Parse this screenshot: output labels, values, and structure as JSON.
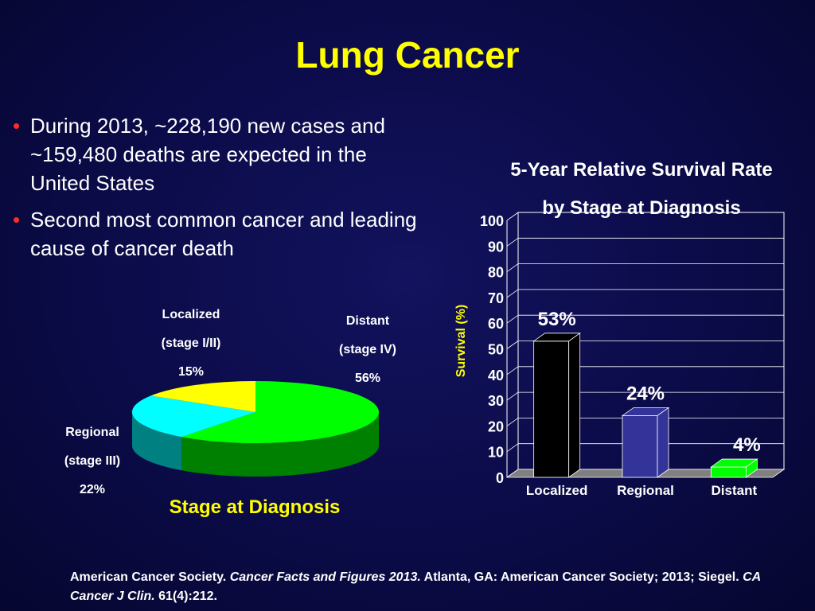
{
  "slide": {
    "title": "Lung Cancer",
    "bullets": [
      "During 2013, ~228,190 new cases and ~159,480 deaths are expected in the United States",
      "Second most common cancer and leading cause of cancer death"
    ],
    "footer": {
      "part1": "American Cancer Society. ",
      "italic1": "Cancer Facts and Figures 2013.",
      "part2": " Atlanta, GA: American Cancer Society; 2013; Siegel. ",
      "italic2": "CA Cancer J Clin.",
      "part3": " 61(4):212."
    },
    "colors": {
      "title": "#ffff00",
      "bullet_marker": "#ff2a2a",
      "background": "#0b0b48"
    }
  },
  "chart_data": [
    {
      "type": "pie",
      "title": "Stage at Diagnosis",
      "slices": [
        {
          "label_line1": "Localized",
          "label_line2": "(stage I/II)",
          "value_label": "15%",
          "value": 15,
          "color": "#ffff00",
          "side_color": "#b3b300"
        },
        {
          "label_line1": "Regional",
          "label_line2": "(stage III)",
          "value_label": "22%",
          "value": 22,
          "color": "#00ffff",
          "side_color": "#008080"
        },
        {
          "label_line1": "Distant",
          "label_line2": "(stage IV)",
          "value_label": "56%",
          "value": 56,
          "color": "#00ff00",
          "side_color": "#008000"
        }
      ]
    },
    {
      "type": "bar",
      "title_line1": "5-Year Relative Survival Rate",
      "title_line2": "by Stage at Diagnosis",
      "ylabel": "Survival (%)",
      "ylim": [
        0,
        100
      ],
      "yticks": [
        0,
        10,
        20,
        30,
        40,
        50,
        60,
        70,
        80,
        90,
        100
      ],
      "grid": true,
      "categories": [
        "Localized",
        "Regional",
        "Distant"
      ],
      "values": [
        53,
        24,
        4
      ],
      "value_labels": [
        "53%",
        "24%",
        "4%"
      ],
      "bar_colors": [
        "#000000",
        "#333399",
        "#00ff00"
      ]
    }
  ]
}
